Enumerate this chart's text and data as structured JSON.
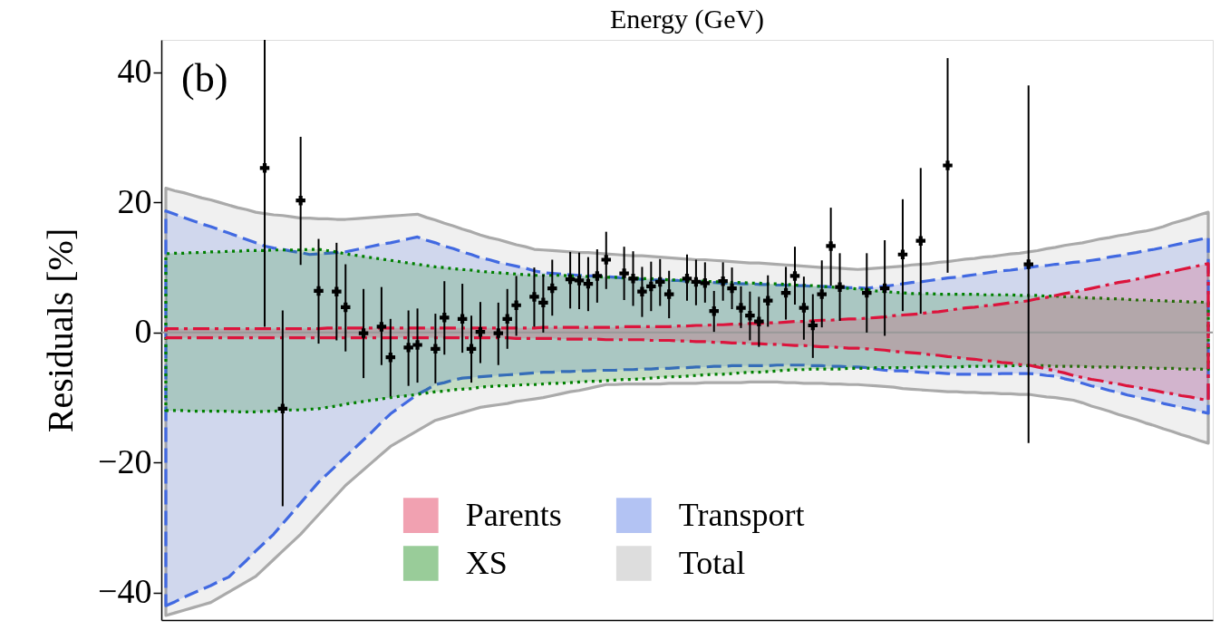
{
  "chart_data": {
    "type": "area",
    "title": "Energy (GeV)",
    "ylabel": "Residuals [%]",
    "categories": [
      null,
      null,
      null,
      null,
      null,
      null,
      null,
      null,
      null,
      null,
      null,
      null,
      null,
      null,
      null,
      null,
      null,
      null,
      null,
      null,
      null,
      null,
      null,
      null,
      null,
      null,
      null,
      null,
      null,
      null,
      null,
      null,
      null,
      null,
      null,
      null,
      null,
      null,
      null,
      null,
      null,
      null,
      null,
      null,
      null,
      null,
      null,
      null,
      null,
      null,
      null,
      null,
      null,
      null,
      null,
      null,
      null,
      null,
      null,
      null,
      null,
      null,
      null,
      null,
      null,
      null,
      null,
      null,
      null,
      null,
      null,
      null,
      null,
      null,
      null,
      null,
      null,
      null,
      null,
      null,
      null,
      null,
      null,
      null,
      null,
      null,
      null,
      null,
      null,
      null,
      null,
      null,
      null,
      null,
      null,
      null,
      null,
      null,
      null,
      null,
      null,
      null,
      null,
      null,
      null,
      null,
      null,
      null,
      null,
      null,
      null,
      null,
      null,
      null,
      null,
      null,
      null
    ],
    "ylim": [
      -44.2,
      45
    ],
    "yticks": [
      -40,
      -20,
      0,
      20,
      40
    ],
    "tick_labels": "y",
    "legend": "bottom",
    "annotations": [
      "(b)"
    ],
    "ref_lines": [
      {
        "axis": "y",
        "value": 0,
        "color": "#999999",
        "line_style": "solid"
      }
    ],
    "series": [
      {
        "name": "Parents",
        "type": "area",
        "color": "#dc143c",
        "line_style": "dashdot",
        "values": [
          null,
          null,
          null,
          null,
          null,
          null,
          null,
          null,
          null,
          null,
          null,
          null,
          null,
          null,
          null,
          null,
          null,
          null,
          null,
          null,
          null,
          null,
          null,
          null,
          null,
          null,
          null,
          null,
          null,
          null,
          null,
          null,
          null,
          null,
          null,
          null,
          null,
          null,
          null,
          null,
          null,
          null,
          null,
          null,
          null,
          null,
          null,
          null,
          null,
          null,
          null,
          null,
          null,
          null,
          null,
          null,
          null,
          null,
          null,
          null,
          null,
          null,
          null,
          null,
          null,
          null,
          null,
          null,
          null,
          null,
          null,
          null,
          null,
          null,
          null,
          null,
          null,
          null,
          null,
          null,
          null,
          null,
          null,
          null,
          null,
          null,
          null,
          null,
          null,
          null,
          null,
          null,
          null,
          null,
          null,
          null,
          null,
          null,
          null,
          null,
          null,
          null,
          null,
          null,
          null,
          null,
          null,
          null,
          null,
          null,
          null,
          null,
          null,
          null,
          null,
          null,
          null
        ],
        "lower": [
          -0.8,
          -0.8,
          -0.8,
          -0.8,
          -0.8,
          -0.8,
          -0.8,
          -0.8,
          -0.8,
          -0.8,
          -0.8,
          -0.8,
          -0.8,
          -0.8,
          -0.8,
          -0.8,
          -0.8,
          -0.8,
          -0.8,
          -0.8,
          -0.8,
          -0.8,
          -0.8,
          -0.8,
          -0.8,
          -0.8,
          -0.8,
          -0.8,
          -0.8,
          -0.8,
          -0.8,
          -0.8,
          -0.8,
          -0.8,
          -0.8,
          -0.8,
          -0.8,
          -0.8,
          -0.8,
          -0.9,
          -0.9,
          -0.9,
          -0.9,
          -0.9,
          -1.0,
          -1.0,
          -1.0,
          -1.0,
          -1.0,
          -1.1,
          -1.1,
          -1.1,
          -1.1,
          -1.1,
          -1.2,
          -1.2,
          -1.2,
          -1.3,
          -1.3,
          -1.4,
          -1.4,
          -1.5,
          -1.5,
          -1.6,
          -1.6,
          -1.7,
          -1.7,
          -1.8,
          -1.8,
          -1.9,
          -2.0,
          -2.0,
          -2.1,
          -2.2,
          -2.2,
          -2.3,
          -2.4,
          -2.4,
          -2.5,
          -2.6,
          -2.7,
          -2.9,
          -3.0,
          -3.1,
          -3.2,
          -3.4,
          -3.5,
          -3.7,
          -3.8,
          -4.0,
          -4.1,
          -4.3,
          -4.4,
          -4.6,
          -4.7,
          -4.9,
          -5.0,
          -5.3,
          -5.6,
          -5.9,
          -6.2,
          -6.6,
          -6.9,
          -7.2,
          -7.4,
          -7.7,
          -7.9,
          -8.2,
          -8.4,
          -8.7,
          -8.9,
          -9.2,
          -9.4,
          -9.7,
          -9.9,
          -10.2,
          -10.4
        ],
        "upper": [
          0.6,
          0.6,
          0.6,
          0.6,
          0.6,
          0.6,
          0.6,
          0.6,
          0.6,
          0.6,
          0.6,
          0.6,
          0.6,
          0.6,
          0.6,
          0.6,
          0.6,
          0.6,
          0.7,
          0.7,
          0.7,
          0.7,
          0.7,
          0.7,
          0.7,
          0.7,
          0.7,
          0.7,
          0.7,
          0.7,
          0.7,
          0.7,
          0.7,
          0.7,
          0.7,
          0.7,
          0.7,
          0.7,
          0.7,
          0.7,
          0.7,
          0.7,
          0.8,
          0.8,
          0.8,
          0.8,
          0.8,
          0.8,
          0.8,
          0.8,
          0.8,
          0.9,
          0.9,
          0.9,
          0.9,
          0.9,
          0.9,
          1.0,
          1.0,
          1.1,
          1.1,
          1.2,
          1.2,
          1.3,
          1.3,
          1.4,
          1.4,
          1.5,
          1.5,
          1.6,
          1.7,
          1.7,
          1.8,
          1.9,
          1.9,
          2.0,
          2.1,
          2.1,
          2.2,
          2.3,
          2.4,
          2.6,
          2.7,
          2.8,
          2.9,
          3.1,
          3.2,
          3.4,
          3.6,
          3.8,
          3.9,
          4.1,
          4.2,
          4.4,
          4.6,
          4.7,
          4.9,
          5.2,
          5.4,
          5.7,
          6.0,
          6.2,
          6.5,
          6.8,
          7.1,
          7.4,
          7.7,
          7.9,
          8.2,
          8.5,
          8.8,
          9.1,
          9.4,
          9.7,
          10.0,
          10.3,
          10.6
        ]
      },
      {
        "name": "XS",
        "type": "area",
        "color": "#008000",
        "line_style": "dotted",
        "values": [
          null,
          null,
          null,
          null,
          null,
          null,
          null,
          null,
          null,
          null,
          null,
          null,
          null,
          null,
          null,
          null,
          null,
          null,
          null,
          null,
          null,
          null,
          null,
          null,
          null,
          null,
          null,
          null,
          null,
          null,
          null,
          null,
          null,
          null,
          null,
          null,
          null,
          null,
          null,
          null,
          null,
          null,
          null,
          null,
          null,
          null,
          null,
          null,
          null,
          null,
          null,
          null,
          null,
          null,
          null,
          null,
          null,
          null,
          null,
          null,
          null,
          null,
          null,
          null,
          null,
          null,
          null,
          null,
          null,
          null,
          null,
          null,
          null,
          null,
          null,
          null,
          null,
          null,
          null,
          null,
          null,
          null,
          null,
          null,
          null,
          null,
          null,
          null,
          null,
          null,
          null,
          null,
          null,
          null,
          null,
          null,
          null,
          null,
          null,
          null,
          null,
          null,
          null,
          null,
          null,
          null,
          null,
          null,
          null,
          null,
          null,
          null,
          null,
          null,
          null,
          null,
          null
        ],
        "lower": [
          -12.0,
          -12.0,
          -12.0,
          -12.1,
          -12.1,
          -12.1,
          -12.1,
          -12.1,
          -12.2,
          -12.2,
          -12.2,
          -12.1,
          -12.1,
          -12.0,
          -11.9,
          -11.9,
          -11.8,
          -11.7,
          -11.5,
          -11.3,
          -11.0,
          -10.8,
          -10.6,
          -10.4,
          -10.2,
          -10.0,
          -9.8,
          -9.7,
          -9.5,
          -9.3,
          -9.1,
          -9.0,
          -8.8,
          -8.7,
          -8.6,
          -8.4,
          -8.3,
          -8.2,
          -8.2,
          -8.1,
          -8.0,
          -8.0,
          -7.9,
          -7.8,
          -7.8,
          -7.7,
          -7.6,
          -7.5,
          -7.5,
          -7.4,
          -7.3,
          -7.2,
          -7.2,
          -7.1,
          -7.0,
          -6.9,
          -6.8,
          -6.8,
          -6.7,
          -6.6,
          -6.5,
          -6.4,
          -6.4,
          -6.3,
          -6.2,
          -6.1,
          -6.1,
          -6.0,
          -5.9,
          -5.8,
          -5.7,
          -5.7,
          -5.6,
          -5.6,
          -5.6,
          -5.6,
          -5.5,
          -5.5,
          -5.5,
          -5.4,
          -5.4,
          -5.4,
          -5.4,
          -5.4,
          -5.3,
          -5.3,
          -5.3,
          -5.3,
          -5.3,
          -5.2,
          -5.2,
          -5.2,
          -5.2,
          -5.2,
          -5.1,
          -5.1,
          -5.1,
          -5.1,
          -5.1,
          -5.2,
          -5.2,
          -5.2,
          -5.2,
          -5.3,
          -5.3,
          -5.3,
          -5.3,
          -5.4,
          -5.4,
          -5.4,
          -5.5,
          -5.5,
          -5.5,
          -5.6,
          -5.6,
          -5.6,
          -5.7
        ],
        "upper": [
          12.1,
          12.2,
          12.2,
          12.3,
          12.3,
          12.4,
          12.4,
          12.5,
          12.5,
          12.6,
          12.6,
          12.6,
          12.7,
          12.7,
          12.7,
          12.7,
          12.8,
          12.8,
          12.6,
          12.4,
          12.1,
          11.9,
          11.7,
          11.5,
          11.3,
          11.1,
          10.9,
          10.7,
          10.5,
          10.3,
          10.1,
          10.0,
          9.8,
          9.7,
          9.6,
          9.4,
          9.3,
          9.2,
          9.1,
          9.0,
          8.9,
          8.8,
          8.8,
          8.8,
          8.8,
          8.7,
          8.7,
          8.6,
          8.6,
          8.5,
          8.5,
          8.4,
          8.4,
          8.3,
          8.3,
          8.2,
          8.1,
          8.1,
          8.0,
          7.9,
          7.9,
          7.8,
          7.8,
          7.7,
          7.7,
          7.6,
          7.6,
          7.5,
          7.5,
          7.4,
          7.3,
          7.3,
          7.2,
          7.1,
          7.0,
          6.9,
          6.8,
          6.7,
          6.6,
          6.4,
          6.3,
          6.2,
          6.1,
          6.0,
          6.0,
          6.0,
          5.9,
          5.9,
          5.9,
          5.9,
          5.9,
          5.8,
          5.8,
          5.8,
          5.8,
          5.7,
          5.7,
          5.7,
          5.6,
          5.6,
          5.5,
          5.5,
          5.4,
          5.3,
          5.3,
          5.2,
          5.2,
          5.1,
          5.0,
          5.0,
          4.9,
          4.9,
          4.8,
          4.8,
          4.7,
          4.7,
          4.6
        ]
      },
      {
        "name": "Transport",
        "type": "area",
        "color": "#4169e1",
        "line_style": "dashed",
        "values": [
          null,
          null,
          null,
          null,
          null,
          null,
          null,
          null,
          null,
          null,
          null,
          null,
          null,
          null,
          null,
          null,
          null,
          null,
          null,
          null,
          null,
          null,
          null,
          null,
          null,
          null,
          null,
          null,
          null,
          null,
          null,
          null,
          null,
          null,
          null,
          null,
          null,
          null,
          null,
          null,
          null,
          null,
          null,
          null,
          null,
          null,
          null,
          null,
          null,
          null,
          null,
          null,
          null,
          null,
          null,
          null,
          null,
          null,
          null,
          null,
          null,
          null,
          null,
          null,
          null,
          null,
          null,
          null,
          null,
          null,
          null,
          null,
          null,
          null,
          null,
          null,
          null,
          null,
          null,
          null,
          null,
          null,
          null,
          null,
          null,
          null,
          null,
          null,
          null,
          null,
          null,
          null,
          null,
          null,
          null,
          null,
          null,
          null,
          null,
          null,
          null,
          null,
          null,
          null,
          null,
          null,
          null,
          null,
          null,
          null,
          null,
          null,
          null,
          null,
          null,
          null,
          null
        ],
        "lower": [
          -42.0,
          -41.4,
          -40.7,
          -40.1,
          -39.5,
          -38.9,
          -38.2,
          -37.6,
          -36.3,
          -35.0,
          -33.6,
          -32.3,
          -31.0,
          -29.4,
          -27.8,
          -26.2,
          -24.6,
          -23.0,
          -21.7,
          -20.4,
          -19.1,
          -17.8,
          -16.5,
          -15.2,
          -13.8,
          -12.5,
          -11.5,
          -10.5,
          -9.5,
          -8.8,
          -8.0,
          -7.7,
          -7.3,
          -7.0,
          -6.9,
          -6.8,
          -6.7,
          -6.6,
          -6.5,
          -6.4,
          -6.3,
          -6.2,
          -6.1,
          -6.1,
          -6.0,
          -6.0,
          -5.9,
          -5.9,
          -5.8,
          -5.8,
          -5.8,
          -5.7,
          -5.7,
          -5.6,
          -5.6,
          -5.5,
          -5.5,
          -5.4,
          -5.4,
          -5.3,
          -5.3,
          -5.2,
          -5.2,
          -5.1,
          -5.1,
          -5.1,
          -5.1,
          -5.1,
          -5.0,
          -5.0,
          -5.0,
          -5.0,
          -5.1,
          -5.1,
          -5.2,
          -5.2,
          -5.3,
          -5.3,
          -5.4,
          -5.6,
          -5.8,
          -5.9,
          -5.9,
          -6.0,
          -6.1,
          -6.2,
          -6.2,
          -6.3,
          -6.4,
          -6.4,
          -6.4,
          -6.4,
          -6.4,
          -6.3,
          -6.3,
          -6.3,
          -6.3,
          -6.4,
          -6.6,
          -6.7,
          -7.1,
          -7.4,
          -7.8,
          -8.2,
          -8.5,
          -8.9,
          -9.2,
          -9.6,
          -9.9,
          -10.2,
          -10.5,
          -10.9,
          -11.2,
          -11.5,
          -11.8,
          -12.1,
          -12.4
        ],
        "upper": [
          18.7,
          18.2,
          17.7,
          17.2,
          16.7,
          16.3,
          15.8,
          15.3,
          14.8,
          14.3,
          13.8,
          13.3,
          13.0,
          12.8,
          12.5,
          12.3,
          12.0,
          12.1,
          12.2,
          12.3,
          12.4,
          12.7,
          13.0,
          13.3,
          13.6,
          13.8,
          14.1,
          14.4,
          14.7,
          14.2,
          13.8,
          13.3,
          12.9,
          12.4,
          12.0,
          11.5,
          11.2,
          10.8,
          10.5,
          10.2,
          9.9,
          9.5,
          9.2,
          9.1,
          9.0,
          8.9,
          8.8,
          8.7,
          8.7,
          8.6,
          8.5,
          8.4,
          8.3,
          8.2,
          8.1,
          8.1,
          8.0,
          8.0,
          7.9,
          7.8,
          7.8,
          7.7,
          7.6,
          7.6,
          7.5,
          7.5,
          7.4,
          7.4,
          7.3,
          7.3,
          7.2,
          7.2,
          7.1,
          7.1,
          7.0,
          7.0,
          6.9,
          6.9,
          6.8,
          7.0,
          7.1,
          7.3,
          7.5,
          7.7,
          7.8,
          8.0,
          8.2,
          8.4,
          8.5,
          8.7,
          8.9,
          9.1,
          9.3,
          9.5,
          9.6,
          9.8,
          10.0,
          10.2,
          10.3,
          10.5,
          10.6,
          10.8,
          10.9,
          11.1,
          11.3,
          11.6,
          11.8,
          12.1,
          12.3,
          12.6,
          12.8,
          13.1,
          13.4,
          13.7,
          14.0,
          14.3,
          14.6
        ]
      },
      {
        "name": "Total",
        "type": "area",
        "color": "#aaaaaa",
        "line_style": "solid",
        "values": [
          null,
          null,
          null,
          null,
          null,
          null,
          null,
          null,
          null,
          null,
          null,
          null,
          null,
          null,
          null,
          null,
          null,
          null,
          null,
          null,
          null,
          null,
          null,
          null,
          null,
          null,
          null,
          null,
          null,
          null,
          null,
          null,
          null,
          null,
          null,
          null,
          null,
          null,
          null,
          null,
          null,
          null,
          null,
          null,
          null,
          null,
          null,
          null,
          null,
          null,
          null,
          null,
          null,
          null,
          null,
          null,
          null,
          null,
          null,
          null,
          null,
          null,
          null,
          null,
          null,
          null,
          null,
          null,
          null,
          null,
          null,
          null,
          null,
          null,
          null,
          null,
          null,
          null,
          null,
          null,
          null,
          null,
          null,
          null,
          null,
          null,
          null,
          null,
          null,
          null,
          null,
          null,
          null,
          null,
          null,
          null,
          null,
          null,
          null,
          null,
          null,
          null,
          null,
          null,
          null,
          null,
          null,
          null,
          null,
          null,
          null,
          null,
          null,
          null,
          null,
          null,
          null
        ],
        "lower": [
          -43.5,
          -43.1,
          -42.7,
          -42.3,
          -41.9,
          -41.5,
          -40.7,
          -39.9,
          -39.1,
          -38.3,
          -37.5,
          -36.2,
          -34.9,
          -33.6,
          -32.3,
          -31.0,
          -29.5,
          -28.0,
          -26.5,
          -25.0,
          -23.5,
          -22.3,
          -21.1,
          -19.9,
          -18.7,
          -17.5,
          -16.7,
          -15.9,
          -15.1,
          -14.3,
          -13.5,
          -13.1,
          -12.7,
          -12.3,
          -11.9,
          -11.5,
          -11.3,
          -11.1,
          -10.9,
          -10.6,
          -10.4,
          -10.2,
          -10.0,
          -9.7,
          -9.4,
          -9.1,
          -8.9,
          -8.6,
          -8.3,
          -8.0,
          -8.0,
          -7.9,
          -7.9,
          -7.9,
          -7.9,
          -7.9,
          -7.8,
          -7.8,
          -7.8,
          -7.8,
          -7.7,
          -7.7,
          -7.7,
          -7.7,
          -7.7,
          -7.6,
          -7.6,
          -7.6,
          -7.6,
          -7.7,
          -7.7,
          -7.8,
          -7.8,
          -7.8,
          -7.9,
          -7.9,
          -8.0,
          -8.0,
          -8.1,
          -8.2,
          -8.3,
          -8.4,
          -8.6,
          -8.7,
          -8.8,
          -8.9,
          -9.0,
          -9.1,
          -9.1,
          -9.2,
          -9.2,
          -9.3,
          -9.3,
          -9.4,
          -9.4,
          -9.5,
          -9.5,
          -9.7,
          -9.9,
          -10.0,
          -10.2,
          -10.4,
          -10.8,
          -11.3,
          -11.7,
          -12.1,
          -12.6,
          -13.0,
          -13.4,
          -13.9,
          -14.3,
          -14.8,
          -15.2,
          -15.7,
          -16.1,
          -16.6,
          -17.0
        ],
        "upper": [
          22.2,
          21.8,
          21.5,
          21.1,
          20.7,
          20.4,
          20.0,
          19.6,
          19.2,
          18.9,
          18.5,
          18.3,
          18.1,
          18.0,
          17.8,
          17.6,
          17.6,
          17.5,
          17.5,
          17.4,
          17.4,
          17.5,
          17.6,
          17.7,
          17.8,
          17.9,
          18.0,
          18.1,
          18.2,
          17.7,
          17.3,
          16.8,
          16.4,
          15.9,
          15.5,
          15.0,
          14.6,
          14.3,
          13.9,
          13.5,
          13.2,
          12.8,
          12.7,
          12.6,
          12.5,
          12.4,
          12.3,
          12.3,
          12.2,
          12.1,
          12.0,
          11.9,
          11.8,
          11.8,
          11.7,
          11.6,
          11.5,
          11.4,
          11.3,
          11.2,
          11.2,
          11.1,
          11.0,
          10.9,
          10.8,
          10.7,
          10.7,
          10.6,
          10.5,
          10.4,
          10.3,
          10.2,
          10.1,
          10.0,
          10.0,
          9.9,
          9.8,
          9.7,
          9.8,
          9.9,
          10.0,
          10.1,
          10.2,
          10.4,
          10.5,
          10.6,
          10.8,
          10.9,
          11.1,
          11.3,
          11.4,
          11.6,
          11.7,
          11.9,
          12.1,
          12.2,
          12.4,
          12.6,
          12.9,
          13.1,
          13.4,
          13.6,
          13.8,
          14.1,
          14.4,
          14.6,
          14.9,
          15.1,
          15.4,
          15.6,
          15.9,
          16.3,
          16.8,
          17.2,
          17.6,
          18.1,
          18.5
        ]
      },
      {
        "type": "scatter",
        "color": "#000000",
        "marker": "cross",
        "values": [
          null,
          null,
          null,
          null,
          null,
          null,
          null,
          null,
          null,
          null,
          null,
          25.3,
          null,
          -11.7,
          null,
          20.3,
          null,
          6.4,
          null,
          6.3,
          3.9,
          null,
          -0.1,
          null,
          0.9,
          -3.8,
          null,
          -2.3,
          -1.9,
          null,
          -2.5,
          2.3,
          null,
          2.1,
          -2.5,
          0.1,
          null,
          -0.1,
          2.1,
          4.2,
          null,
          5.5,
          4.6,
          6.8,
          null,
          8.2,
          8.0,
          7.5,
          8.7,
          11.2,
          null,
          9.1,
          8.3,
          6.3,
          7.1,
          7.8,
          5.9,
          null,
          8.3,
          7.8,
          7.6,
          3.3,
          7.9,
          6.8,
          3.8,
          2.6,
          1.7,
          4.9,
          null,
          6.1,
          8.7,
          3.8,
          1.1,
          5.9,
          13.3,
          7.0,
          null,
          null,
          6.1,
          null,
          6.8,
          null,
          12.0,
          null,
          14.1,
          null,
          null,
          25.7,
          null,
          null,
          null,
          null,
          null,
          null,
          null,
          null,
          10.5,
          null,
          null,
          null,
          null,
          null,
          null,
          null,
          null,
          null,
          null,
          null,
          null,
          null,
          null,
          null,
          null,
          null,
          null,
          null,
          null
        ],
        "errors": [
          null,
          null,
          null,
          null,
          null,
          null,
          null,
          null,
          null,
          null,
          null,
          [
            0.9,
            45
          ],
          null,
          [
            -26.7,
            3.4
          ],
          null,
          [
            10.4,
            30.1
          ],
          null,
          [
            -1.7,
            14.4
          ],
          null,
          [
            -1.2,
            13.8
          ],
          [
            -2.9,
            10.5
          ],
          null,
          [
            -7.0,
            6.7
          ],
          null,
          [
            -5.0,
            7.0
          ],
          [
            -9.8,
            2.1
          ],
          null,
          [
            -8.2,
            3.4
          ],
          [
            -7.7,
            3.7
          ],
          null,
          [
            -7.8,
            2.9
          ],
          [
            -3.4,
            7.9
          ],
          null,
          [
            -3.1,
            7.5
          ],
          [
            -7.7,
            2.6
          ],
          [
            -4.7,
            4.7
          ],
          null,
          [
            -5.0,
            4.6
          ],
          [
            -2.5,
            6.7
          ],
          [
            -0.5,
            8.7
          ],
          null,
          [
            0.9,
            10.0
          ],
          [
            0.0,
            8.9
          ],
          [
            2.6,
            11.2
          ],
          null,
          [
            3.7,
            12.4
          ],
          [
            3.6,
            12.3
          ],
          [
            3.3,
            11.6
          ],
          [
            4.6,
            12.8
          ],
          [
            6.7,
            15.5
          ],
          null,
          [
            5.0,
            13.2
          ],
          [
            4.1,
            12.5
          ],
          [
            2.4,
            10.1
          ],
          [
            3.3,
            10.9
          ],
          [
            4.1,
            11.3
          ],
          [
            2.2,
            9.5
          ],
          null,
          [
            4.9,
            12.0
          ],
          [
            4.2,
            11.2
          ],
          [
            4.6,
            10.8
          ],
          [
            0.1,
            6.4
          ],
          [
            4.9,
            10.8
          ],
          [
            3.6,
            10.0
          ],
          [
            0.7,
            7.1
          ],
          [
            -1.2,
            6.3
          ],
          [
            -2.2,
            5.5
          ],
          [
            0.9,
            8.8
          ],
          null,
          [
            2.0,
            10.1
          ],
          [
            4.3,
            13.2
          ],
          [
            -1.1,
            8.6
          ],
          [
            -3.9,
            5.9
          ],
          [
            0.8,
            11.1
          ],
          [
            7.2,
            19.2
          ],
          [
            1.8,
            12.2
          ],
          null,
          null,
          [
            0.0,
            12.2
          ],
          null,
          [
            -0.5,
            14.2
          ],
          null,
          [
            3.3,
            20.5
          ],
          null,
          [
            2.9,
            25.3
          ],
          null,
          null,
          [
            9.2,
            42.2
          ],
          null,
          null,
          null,
          null,
          null,
          null,
          null,
          null,
          [
            -17.0,
            38.0
          ],
          null,
          null,
          null,
          null,
          null,
          null,
          null,
          null,
          null,
          null,
          null,
          null,
          null,
          null,
          null,
          null,
          null,
          null,
          null,
          null
        ]
      }
    ]
  }
}
